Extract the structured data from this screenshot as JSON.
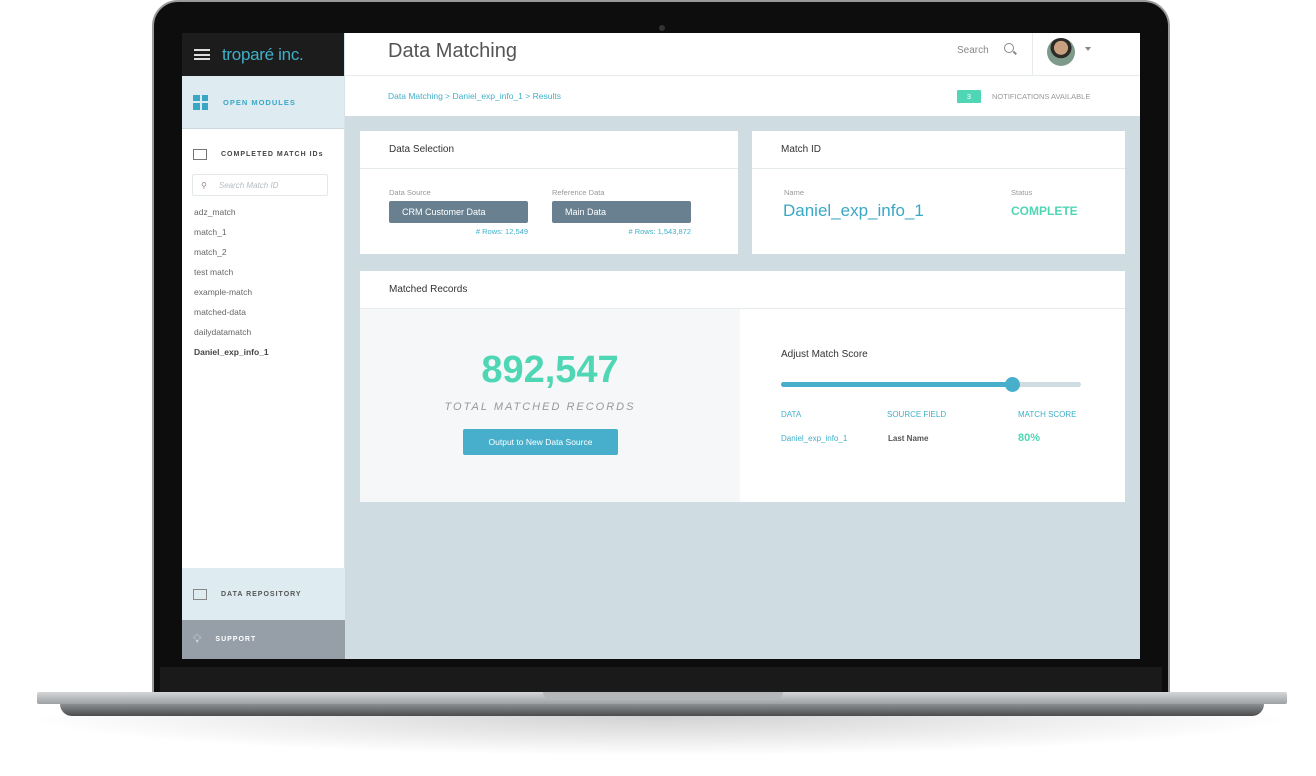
{
  "brand": "troparé inc.",
  "header": {
    "title": "Data Matching",
    "search_label": "Search"
  },
  "breadcrumb": "Data Matching > Daniel_exp_info_1 > Results",
  "notifications": {
    "count": "3",
    "label": "NOTIFICATIONS AVAILABLE"
  },
  "sidebar": {
    "open_modules": "OPEN MODULES",
    "completed_title": "COMPLETED MATCH IDs",
    "search_placeholder": "Search Match ID",
    "items": [
      "adz_match",
      "match_1",
      "match_2",
      "test match",
      "example-match",
      "matched-data",
      "dailydatamatch",
      "Daniel_exp_info_1"
    ],
    "active_item": "Daniel_exp_info_1",
    "data_repository": "DATA REPOSITORY",
    "support": "SUPPORT"
  },
  "data_selection": {
    "title": "Data Selection",
    "source_label": "Data Source",
    "source_value": "CRM Customer Data",
    "source_rows": "# Rows: 12,549",
    "reference_label": "Reference Data",
    "reference_value": "Main Data",
    "reference_rows": "# Rows: 1,543,872"
  },
  "match_id": {
    "title": "Match ID",
    "name_label": "Name",
    "name_value": "Daniel_exp_info_1",
    "status_label": "Status",
    "status_value": "COMPLETE"
  },
  "matched_records": {
    "title": "Matched Records",
    "total": "892,547",
    "total_label": "TOTAL MATCHED RECORDS",
    "output_button": "Output to New Data Source",
    "adjust_label": "Adjust Match Score",
    "slider_value": 0.77,
    "columns": [
      "DATA",
      "SOURCE FIELD",
      "MATCH SCORE"
    ],
    "row": {
      "data": "Daniel_exp_info_1",
      "source_field": "Last Name",
      "match_score": "80%"
    }
  },
  "colors": {
    "accent": "#3fb0c9",
    "success": "#4fd6b5",
    "button": "#68808f"
  }
}
